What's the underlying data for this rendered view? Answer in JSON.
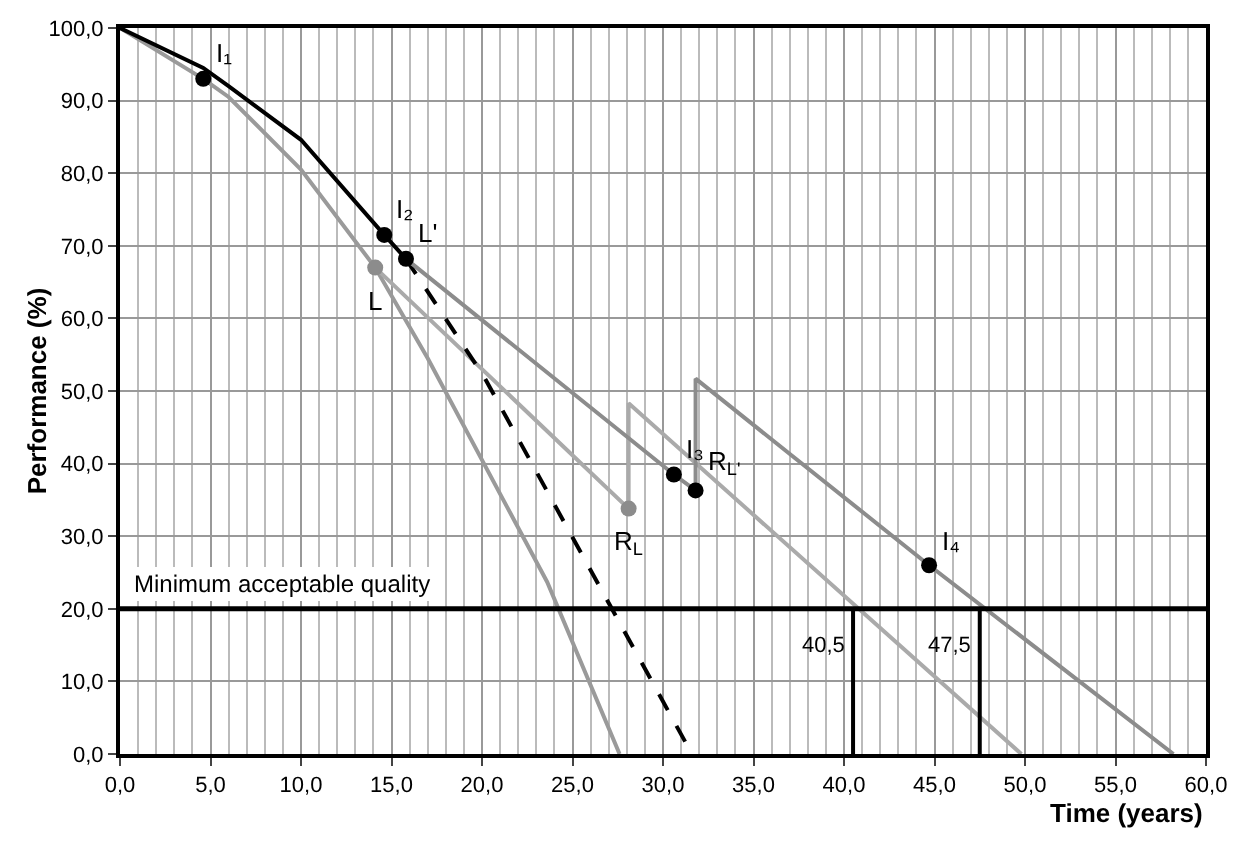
{
  "chart_data": {
    "type": "line",
    "xlabel": "Time (years)",
    "ylabel": "Performance (%)",
    "xlim": [
      0,
      60
    ],
    "ylim": [
      0,
      100
    ],
    "xticks": [
      {
        "value": 0,
        "label": "0,0"
      },
      {
        "value": 5,
        "label": "5,0"
      },
      {
        "value": 10,
        "label": "10,0"
      },
      {
        "value": 15,
        "label": "15,0"
      },
      {
        "value": 20,
        "label": "20,0"
      },
      {
        "value": 25,
        "label": "25,0"
      },
      {
        "value": 30,
        "label": "30,0"
      },
      {
        "value": 35,
        "label": "35,0"
      },
      {
        "value": 40,
        "label": "40,0"
      },
      {
        "value": 45,
        "label": "45,0"
      },
      {
        "value": 50,
        "label": "50,0"
      },
      {
        "value": 55,
        "label": "55,0"
      },
      {
        "value": 60,
        "label": "60,0"
      }
    ],
    "yticks": [
      {
        "value": 0,
        "label": "0,0"
      },
      {
        "value": 10,
        "label": "10,0"
      },
      {
        "value": 20,
        "label": "20,0"
      },
      {
        "value": 30,
        "label": "30,0"
      },
      {
        "value": 40,
        "label": "40,0"
      },
      {
        "value": 50,
        "label": "50,0"
      },
      {
        "value": 60,
        "label": "60,0"
      },
      {
        "value": 70,
        "label": "70,0"
      },
      {
        "value": 80,
        "label": "80,0"
      },
      {
        "value": 90,
        "label": "90,0"
      },
      {
        "value": 100,
        "label": "100,0"
      }
    ],
    "grid": true,
    "series": [
      {
        "color": "#9a9a9a",
        "line_style": "solid",
        "x": [
          0,
          4.6,
          6,
          10,
          14.1,
          17,
          23.6,
          27.6
        ],
        "values": [
          100,
          93,
          90.5,
          80.5,
          67,
          54.5,
          23.7,
          0
        ]
      },
      {
        "color": "#aaaaaa",
        "line_style": "solid",
        "x": [
          14.1,
          28.1,
          28.1,
          49.8
        ],
        "values": [
          67,
          33.8,
          48.3,
          0
        ]
      },
      {
        "color": "#000000",
        "line_style": "solid",
        "x": [
          0,
          4.6,
          6,
          10,
          14.6,
          15.8
        ],
        "values": [
          100,
          94.5,
          92,
          84.6,
          71.5,
          68.2
        ]
      },
      {
        "color": "#000000",
        "line_style": "dashed",
        "x": [
          15.8,
          20.1,
          31.6
        ],
        "values": [
          68.2,
          52,
          0
        ]
      },
      {
        "color": "#8c8c8c",
        "line_style": "solid",
        "x": [
          15.8,
          30.6,
          31.8,
          31.8,
          44.7,
          58.2
        ],
        "values": [
          68.2,
          38.5,
          36.3,
          51.7,
          26,
          0
        ]
      },
      {
        "color": "#000000",
        "line_style": "solid",
        "x": [
          40.5,
          40.5
        ],
        "values": [
          0,
          20
        ]
      },
      {
        "color": "#000000",
        "line_style": "solid",
        "x": [
          47.5,
          47.5
        ],
        "values": [
          0,
          20
        ]
      },
      {
        "type": "scatter",
        "marker": "circle",
        "x": [
          4.6,
          14.6,
          15.8,
          14.1,
          30.6,
          31.8,
          28.1,
          44.7
        ],
        "values": [
          93,
          71.5,
          68.2,
          67,
          38.5,
          36.3,
          33.8,
          26
        ],
        "colors": [
          "#000000",
          "#000000",
          "#000000",
          "#8c8c8c",
          "#000000",
          "#000000",
          "#8c8c8c",
          "#000000"
        ]
      }
    ],
    "ref_lines": [
      {
        "axis": "y",
        "value": 20,
        "label": "Minimum acceptable quality",
        "color": "#000000"
      }
    ],
    "annotations": [
      {
        "text": "I₁",
        "x": 4.6,
        "y": 93
      },
      {
        "text": "I₂",
        "x": 14.6,
        "y": 71.5
      },
      {
        "text": "L'",
        "x": 15.8,
        "y": 68.2
      },
      {
        "text": "L",
        "x": 14.1,
        "y": 67
      },
      {
        "text": "I₃",
        "x": 30.6,
        "y": 38.5
      },
      {
        "text": "R$_{L'}$",
        "x": 31.8,
        "y": 36.3
      },
      {
        "text": "R$_{L}$",
        "x": 28.1,
        "y": 33.8
      },
      {
        "text": "I₄",
        "x": 44.7,
        "y": 26
      },
      {
        "text": "40,5",
        "x": 40.5,
        "y": 15
      },
      {
        "text": "47,5",
        "x": 47.5,
        "y": 15
      }
    ]
  }
}
